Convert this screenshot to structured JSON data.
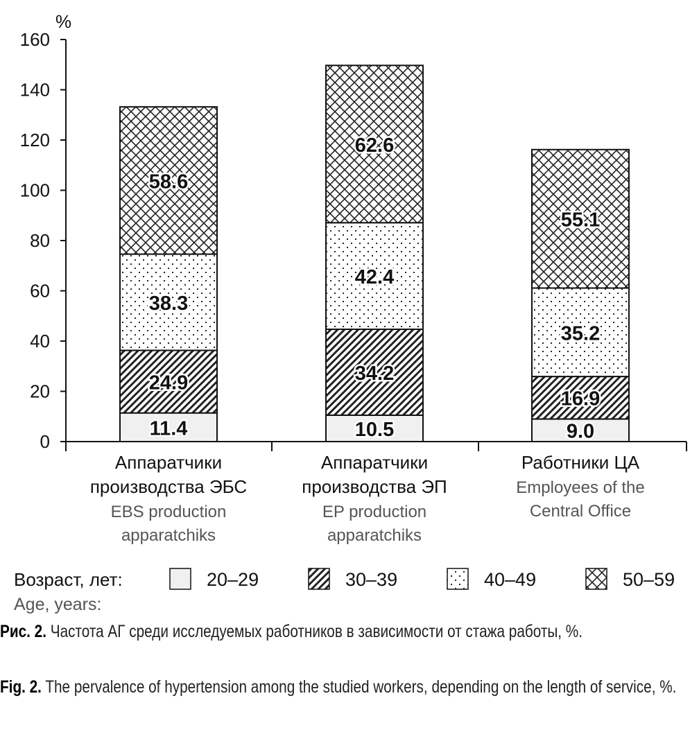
{
  "chart_data": {
    "type": "bar",
    "stacked": true,
    "ylabel": "%",
    "ylim": [
      0,
      160
    ],
    "yticks": [
      0,
      20,
      40,
      60,
      80,
      100,
      120,
      140,
      160
    ],
    "grid": false,
    "categories": [
      {
        "ru": [
          "Аппаратчики",
          "производства ЭБС"
        ],
        "en": [
          "EBS production",
          "apparatchiks"
        ]
      },
      {
        "ru": [
          "Аппаратчики",
          "производства ЭП"
        ],
        "en": [
          "EP production",
          "apparatchiks"
        ]
      },
      {
        "ru": [
          "Работники ЦА"
        ],
        "en": [
          "Employees of the",
          "Central Office"
        ]
      }
    ],
    "series": [
      {
        "name": "20–29",
        "pattern": "solid",
        "values": [
          11.4,
          10.5,
          9.0
        ],
        "labels": [
          "11.4",
          "10.5",
          "9.0"
        ]
      },
      {
        "name": "30–39",
        "pattern": "diagonal",
        "values": [
          24.9,
          34.2,
          16.9
        ],
        "labels": [
          "24.9",
          "34.2",
          "16.9"
        ]
      },
      {
        "name": "40–49",
        "pattern": "dots",
        "values": [
          38.3,
          42.4,
          35.2
        ],
        "labels": [
          "38.3",
          "42.4",
          "35.2"
        ]
      },
      {
        "name": "50–59",
        "pattern": "crosshatch",
        "values": [
          58.6,
          62.6,
          55.1
        ],
        "labels": [
          "58.6",
          "62.6",
          "55.1"
        ]
      }
    ],
    "legend": {
      "title_ru": "Возраст, лет:",
      "title_en": "Age, years:",
      "placement": "bottom"
    }
  },
  "caption": {
    "ru_prefix": "Рис. 2.",
    "ru_text": " Частота АГ среди исследуемых работников в зависимости от стажа работы, %.",
    "en_prefix": "Fig. 2.",
    "en_text": " The pervalence of hypertension among the studied workers, depending on the length of service, %."
  },
  "colors": {
    "solid_fill": "#f0f0f0",
    "axis": "#111111",
    "pattern": "#222222"
  }
}
